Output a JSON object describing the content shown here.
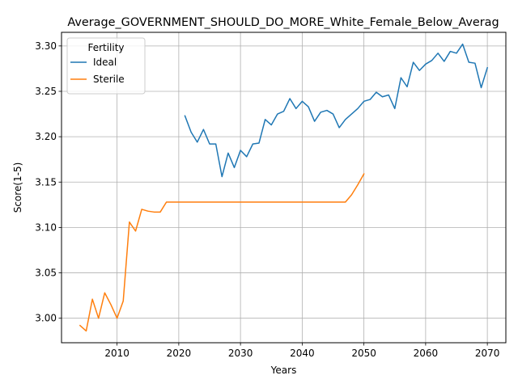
{
  "chart_data": {
    "type": "line",
    "title": "Average_GOVERNMENT_SHOULD_DO_MORE_White_Female_Below_Averag",
    "xlabel": "Years",
    "ylabel": "Score(1-5)",
    "xlim": [
      2001,
      2073
    ],
    "ylim": [
      2.973,
      3.315
    ],
    "xticks": [
      2010,
      2020,
      2030,
      2040,
      2050,
      2060,
      2070
    ],
    "yticks": [
      3.0,
      3.05,
      3.1,
      3.15,
      3.2,
      3.25,
      3.3
    ],
    "ytick_labels": [
      "3.00",
      "3.05",
      "3.10",
      "3.15",
      "3.20",
      "3.25",
      "3.30"
    ],
    "grid": true,
    "legend": {
      "title": "Fertility",
      "placement": "top-left"
    },
    "series": [
      {
        "name": "Ideal",
        "color": "#1f77b4",
        "x": [
          2021,
          2022,
          2023,
          2024,
          2025,
          2026,
          2027,
          2028,
          2029,
          2030,
          2031,
          2032,
          2033,
          2034,
          2035,
          2036,
          2037,
          2038,
          2039,
          2040,
          2041,
          2042,
          2043,
          2044,
          2045,
          2046,
          2047,
          2048,
          2049,
          2050,
          2051,
          2052,
          2053,
          2054,
          2055,
          2056,
          2057,
          2058,
          2059,
          2060,
          2061,
          2062,
          2063,
          2064,
          2065,
          2066,
          2067,
          2068,
          2069,
          2070
        ],
        "y": [
          3.223,
          3.205,
          3.194,
          3.208,
          3.192,
          3.192,
          3.156,
          3.182,
          3.166,
          3.185,
          3.178,
          3.192,
          3.193,
          3.219,
          3.213,
          3.225,
          3.228,
          3.242,
          3.231,
          3.239,
          3.233,
          3.217,
          3.227,
          3.229,
          3.225,
          3.21,
          3.219,
          3.225,
          3.231,
          3.239,
          3.241,
          3.249,
          3.244,
          3.246,
          3.231,
          3.265,
          3.255,
          3.282,
          3.273,
          3.28,
          3.284,
          3.292,
          3.283,
          3.294,
          3.292,
          3.302,
          3.282,
          3.281,
          3.254,
          3.276
        ]
      },
      {
        "name": "Sterile",
        "color": "#ff7f0e",
        "x": [
          2004,
          2005,
          2006,
          2007,
          2008,
          2009,
          2010,
          2011,
          2012,
          2013,
          2014,
          2015,
          2016,
          2017,
          2018,
          2019,
          2020,
          2021,
          2022,
          2023,
          2024,
          2025,
          2026,
          2027,
          2028,
          2029,
          2030,
          2031,
          2032,
          2033,
          2034,
          2035,
          2036,
          2037,
          2038,
          2039,
          2040,
          2041,
          2042,
          2043,
          2044,
          2045,
          2046,
          2047,
          2048,
          2049,
          2050
        ],
        "y": [
          2.992,
          2.986,
          3.021,
          3.0,
          3.028,
          3.015,
          3.0,
          3.019,
          3.106,
          3.096,
          3.12,
          3.118,
          3.117,
          3.117,
          3.128,
          3.128,
          3.128,
          3.128,
          3.128,
          3.128,
          3.128,
          3.128,
          3.128,
          3.128,
          3.128,
          3.128,
          3.128,
          3.128,
          3.128,
          3.128,
          3.128,
          3.128,
          3.128,
          3.128,
          3.128,
          3.128,
          3.128,
          3.128,
          3.128,
          3.128,
          3.128,
          3.128,
          3.128,
          3.128,
          3.136,
          3.147,
          3.159
        ]
      }
    ]
  }
}
